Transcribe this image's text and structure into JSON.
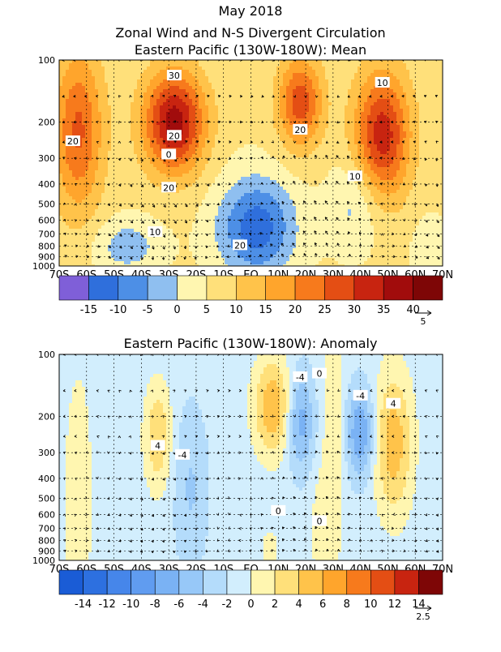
{
  "titles": {
    "line1": "May 2018",
    "line2": "Zonal Wind and N-S Divergent Circulation",
    "line3": "Eastern Pacific (130W-180W): Mean",
    "panel2": "Eastern Pacific (130W-180W): Anomaly"
  },
  "chart_data": [
    {
      "type": "heatmap",
      "title": "Eastern Pacific (130W-180W): Mean",
      "x_ticks": [
        "70S",
        "60S",
        "50S",
        "40S",
        "30S",
        "20S",
        "10S",
        "EQ",
        "10N",
        "20N",
        "30N",
        "40N",
        "50N",
        "60N",
        "70N"
      ],
      "y_ticks": [
        "100",
        "200",
        "300",
        "400",
        "500",
        "600",
        "700",
        "800",
        "900",
        "1000"
      ],
      "y_scale": "log",
      "ylim": [
        1000,
        100
      ],
      "grid": true,
      "contour_labels": [
        "30",
        "20",
        "20",
        "20",
        "20",
        "10",
        "10",
        "10",
        "0",
        "20"
      ],
      "colorbar_levels": [
        -20,
        -15,
        -10,
        -5,
        0,
        5,
        10,
        15,
        20,
        25,
        30,
        35,
        40,
        45
      ],
      "colorbar_labels": [
        "-15",
        "-10",
        "-5",
        "0",
        "5",
        "10",
        "15",
        "20",
        "25",
        "30",
        "35",
        "40"
      ],
      "colorbar_colors": [
        "#7f5fd8",
        "#2f6fdc",
        "#4d8fe6",
        "#8fbff0",
        "#fff6b0",
        "#ffe07a",
        "#ffc34a",
        "#ffa52c",
        "#f77a1c",
        "#e44e14",
        "#c82410",
        "#a10c0c",
        "#7e0606"
      ],
      "vector_reference": "5",
      "features": [
        {
          "lat": -28,
          "p": 200,
          "value": 38
        },
        {
          "lat": -62,
          "p": 200,
          "value": 25
        },
        {
          "lat": 18,
          "p": 170,
          "value": 27
        },
        {
          "lat": 48,
          "p": 230,
          "value": 32
        },
        {
          "lat": 2,
          "p": 600,
          "value": -12
        }
      ]
    },
    {
      "type": "heatmap",
      "title": "Eastern Pacific (130W-180W): Anomaly",
      "x_ticks": [
        "70S",
        "60S",
        "50S",
        "40S",
        "30S",
        "20S",
        "10S",
        "EQ",
        "10N",
        "20N",
        "30N",
        "40N",
        "50N",
        "60N",
        "70N"
      ],
      "y_ticks": [
        "100",
        "200",
        "300",
        "400",
        "500",
        "600",
        "700",
        "800",
        "900",
        "1000"
      ],
      "y_scale": "log",
      "ylim": [
        1000,
        100
      ],
      "grid": true,
      "contour_labels": [
        "-4",
        "-4",
        "-4",
        "4",
        "4",
        "0",
        "0",
        "0"
      ],
      "colorbar_levels": [
        -16,
        -14,
        -12,
        -10,
        -8,
        -6,
        -4,
        -2,
        0,
        2,
        4,
        6,
        8,
        10,
        12,
        14,
        16
      ],
      "colorbar_labels": [
        "-14",
        "-12",
        "-10",
        "-8",
        "-6",
        "-4",
        "-2",
        "0",
        "2",
        "4",
        "6",
        "8",
        "10",
        "12",
        "14"
      ],
      "colorbar_colors": [
        "#1a5cd6",
        "#2d70e0",
        "#4686ea",
        "#609cf0",
        "#7ab2f4",
        "#97c8f8",
        "#b4dcfb",
        "#d2eefd",
        "#fff6b0",
        "#ffe07a",
        "#ffc34a",
        "#ffa52c",
        "#f77a1c",
        "#e44e14",
        "#c82410",
        "#7e0606"
      ],
      "vector_reference": "2.5",
      "features": [
        {
          "lat": 8,
          "p": 190,
          "value": 7
        },
        {
          "lat": 18,
          "p": 200,
          "value": -6
        },
        {
          "lat": 40,
          "p": 230,
          "value": -7
        },
        {
          "lat": 52,
          "p": 260,
          "value": 6
        },
        {
          "lat": -34,
          "p": 240,
          "value": 5
        }
      ]
    }
  ]
}
